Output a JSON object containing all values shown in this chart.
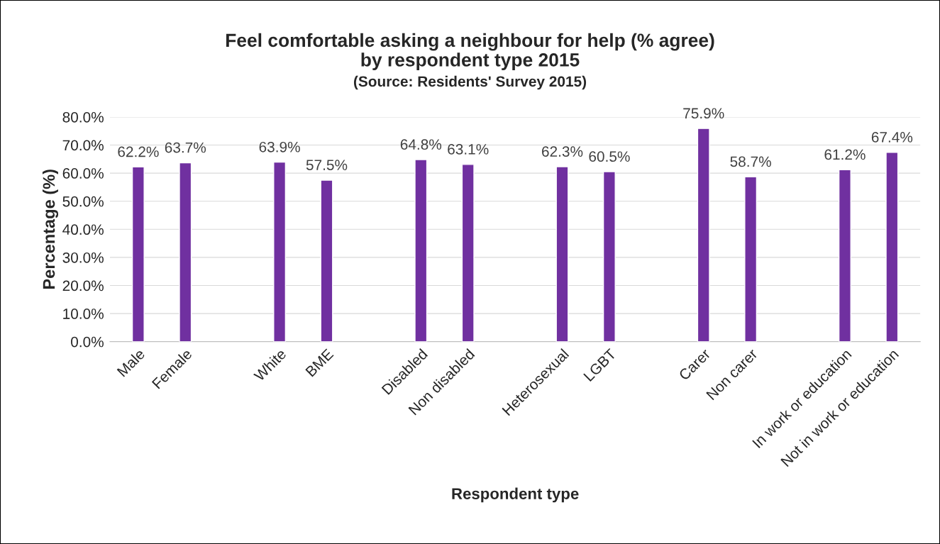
{
  "chart_data": {
    "type": "bar",
    "title": "Feel comfortable asking a neighbour for help (% agree)\nby respondent type 2015",
    "subtitle": "(Source: Residents' Survey 2015)",
    "xlabel": "Respondent type",
    "ylabel": "Percentage (%)",
    "categories": [
      "Male",
      "Female",
      null,
      "White",
      "BME",
      null,
      "Disabled",
      "Non disabled",
      null,
      "Heterosexual",
      "LGBT",
      null,
      "Carer",
      "Non carer",
      null,
      "In work or education",
      "Not in work or education"
    ],
    "values": [
      62.2,
      63.7,
      null,
      63.9,
      57.5,
      null,
      64.8,
      63.1,
      null,
      62.3,
      60.5,
      null,
      75.9,
      58.7,
      null,
      61.2,
      67.4
    ],
    "value_labels": [
      "62.2%",
      "63.7%",
      null,
      "63.9%",
      "57.5%",
      null,
      "64.8%",
      "63.1%",
      null,
      "62.3%",
      "60.5%",
      null,
      "75.9%",
      "58.7%",
      null,
      "61.2%",
      "67.4%"
    ],
    "color": "#7030a0",
    "ylim": [
      0,
      80
    ],
    "yticks": [
      {
        "value": 0,
        "label": "0.0%"
      },
      {
        "value": 10,
        "label": "10.0%"
      },
      {
        "value": 20,
        "label": "20.0%"
      },
      {
        "value": 30,
        "label": "30.0%"
      },
      {
        "value": 40,
        "label": "40.0%"
      },
      {
        "value": 50,
        "label": "50.0%"
      },
      {
        "value": 60,
        "label": "60.0%"
      },
      {
        "value": 70,
        "label": "70.0%"
      },
      {
        "value": 80,
        "label": "80.0%"
      }
    ],
    "grid": "y",
    "legend": false
  }
}
